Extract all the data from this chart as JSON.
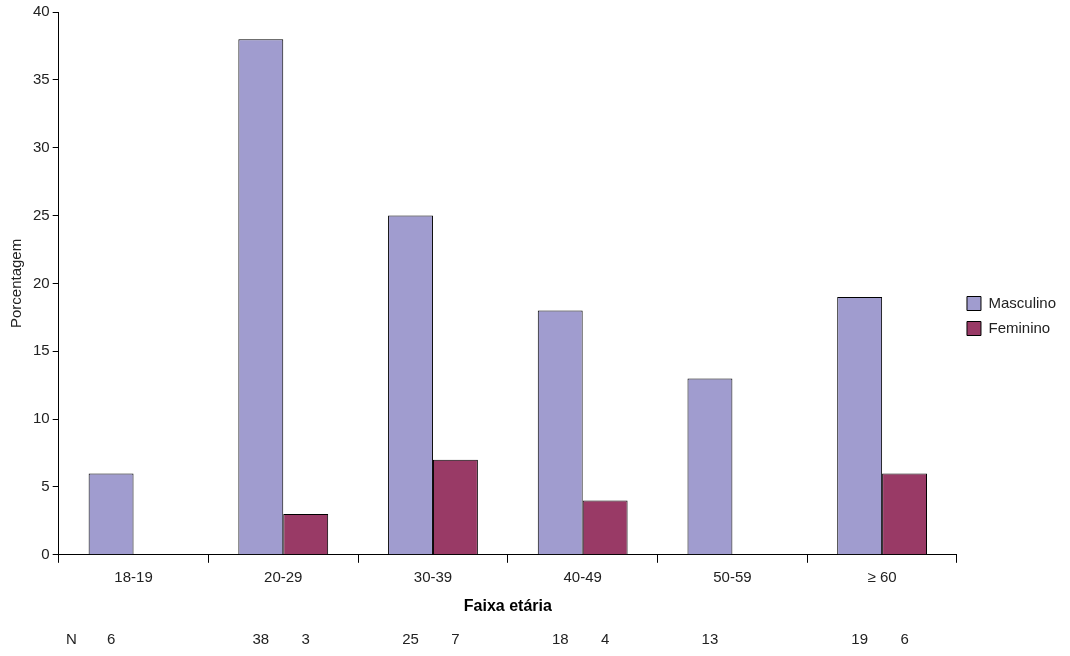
{
  "chart_data": {
    "type": "bar",
    "xlabel": "Faixa etária",
    "ylabel": "Porcentagem",
    "categories": [
      "18-19",
      "20-29",
      "30-39",
      "40-49",
      "50-59",
      "≥ 60"
    ],
    "series": [
      {
        "name": "Masculino",
        "color": "#a09ccf",
        "values": [
          6,
          38,
          25,
          18,
          13,
          19
        ],
        "value_labels": [
          "6",
          "38",
          "25",
          "18",
          "13",
          "19"
        ]
      },
      {
        "name": "Feminino",
        "color": "#993a66",
        "values": [
          null,
          3,
          7,
          4,
          null,
          6
        ]
      }
    ],
    "ylim": [
      0,
      40
    ],
    "yticks": [
      0,
      5,
      10,
      15,
      20,
      25,
      30,
      35,
      40
    ],
    "grid": false,
    "legend": "right",
    "annotations": [
      "N",
      "3",
      "7",
      "4",
      "6"
    ]
  }
}
